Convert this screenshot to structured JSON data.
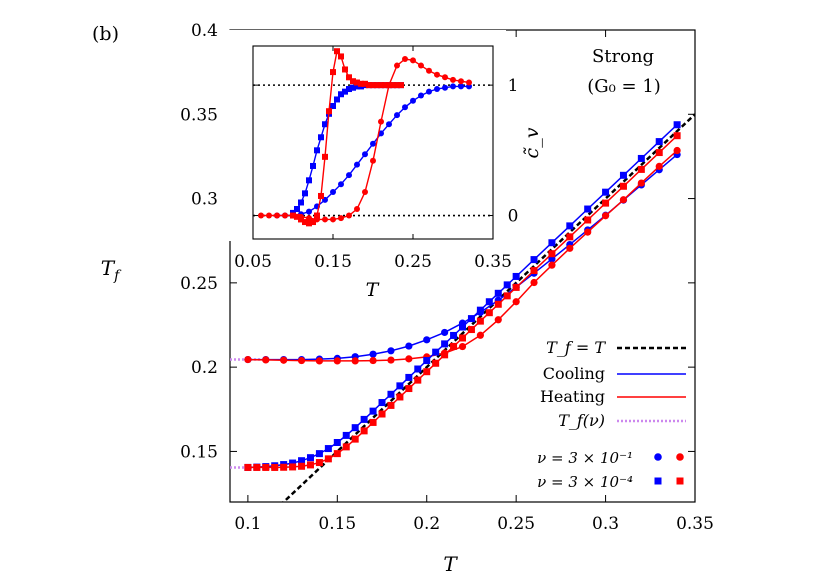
{
  "chart_data": [
    {
      "type": "line",
      "panel_label": "(b)",
      "xlabel": "T",
      "ylabel": "T_f",
      "xlim": [
        0.09,
        0.35
      ],
      "ylim": [
        0.12,
        0.4
      ],
      "xticks": [
        "0.1",
        "0.15",
        "0.2",
        "0.25",
        "0.3",
        "0.35"
      ],
      "yticks": [
        "0.15",
        "0.2",
        "0.25",
        "0.3",
        "0.35",
        "0.4"
      ],
      "annotation": {
        "line1": "Strong",
        "line2": "(G₀ = 1)"
      },
      "legend": {
        "position": "bottom-right",
        "items": [
          {
            "label": "T_f = T",
            "color": "#000000",
            "style": "dashed"
          },
          {
            "label": "Cooling",
            "color": "#0000ff",
            "style": "solid"
          },
          {
            "label": "Heating",
            "color": "#ff0000",
            "style": "solid"
          },
          {
            "label": "T_f(ν)",
            "color": "#cc88ee",
            "style": "dotted"
          }
        ],
        "markers": [
          {
            "label": "ν = 3 × 10⁻¹",
            "marker": "circle"
          },
          {
            "label": "ν = 3 × 10⁻⁴",
            "marker": "square"
          }
        ]
      },
      "series": [
        {
          "name": "Cooling, ν = 3 × 10⁻¹",
          "color": "#0000ff",
          "marker": "circle",
          "x": [
            0.1,
            0.11,
            0.12,
            0.13,
            0.14,
            0.15,
            0.16,
            0.17,
            0.18,
            0.19,
            0.2,
            0.21,
            0.22,
            0.23,
            0.24,
            0.25,
            0.26,
            0.27,
            0.28,
            0.29,
            0.3,
            0.31,
            0.32,
            0.33,
            0.34
          ],
          "y": [
            0.2045,
            0.2045,
            0.2045,
            0.2045,
            0.2048,
            0.2052,
            0.2062,
            0.2077,
            0.2097,
            0.2125,
            0.2162,
            0.2206,
            0.2261,
            0.2325,
            0.2397,
            0.2475,
            0.2557,
            0.2642,
            0.2727,
            0.2814,
            0.2901,
            0.2991,
            0.3081,
            0.3171,
            0.3261
          ]
        },
        {
          "name": "Heating, ν = 3 × 10⁻¹",
          "color": "#ff0000",
          "marker": "circle",
          "x": [
            0.1,
            0.11,
            0.12,
            0.13,
            0.14,
            0.15,
            0.16,
            0.17,
            0.18,
            0.19,
            0.2,
            0.21,
            0.22,
            0.23,
            0.24,
            0.25,
            0.26,
            0.27,
            0.28,
            0.29,
            0.3,
            0.31,
            0.32,
            0.33,
            0.34
          ],
          "y": [
            0.2045,
            0.2043,
            0.2041,
            0.2039,
            0.2037,
            0.2037,
            0.2037,
            0.2039,
            0.2042,
            0.2049,
            0.2061,
            0.2083,
            0.2122,
            0.2189,
            0.2281,
            0.2388,
            0.2502,
            0.2605,
            0.2705,
            0.2801,
            0.2898,
            0.2993,
            0.3092,
            0.3191,
            0.3285
          ]
        },
        {
          "name": "Cooling, ν = 3 × 10⁻⁴",
          "color": "#0000ff",
          "marker": "square",
          "x": [
            0.1,
            0.105,
            0.11,
            0.115,
            0.12,
            0.125,
            0.13,
            0.135,
            0.14,
            0.145,
            0.15,
            0.155,
            0.16,
            0.165,
            0.17,
            0.175,
            0.18,
            0.185,
            0.19,
            0.195,
            0.2,
            0.205,
            0.21,
            0.215,
            0.22,
            0.225,
            0.23,
            0.235,
            0.24,
            0.245,
            0.25,
            0.26,
            0.27,
            0.28,
            0.29,
            0.3,
            0.31,
            0.32,
            0.33,
            0.34
          ],
          "y": [
            0.1405,
            0.1407,
            0.141,
            0.1415,
            0.1422,
            0.1431,
            0.1445,
            0.1463,
            0.1487,
            0.1517,
            0.1553,
            0.1595,
            0.1641,
            0.169,
            0.1739,
            0.179,
            0.1839,
            0.1889,
            0.1939,
            0.1989,
            0.2039,
            0.2089,
            0.2138,
            0.2188,
            0.2238,
            0.2288,
            0.2338,
            0.2388,
            0.2438,
            0.2488,
            0.2538,
            0.2638,
            0.2738,
            0.2838,
            0.2938,
            0.3038,
            0.3138,
            0.3238,
            0.3338,
            0.3438
          ]
        },
        {
          "name": "Heating, ν = 3 × 10⁻⁴",
          "color": "#ff0000",
          "marker": "square",
          "x": [
            0.1,
            0.105,
            0.11,
            0.115,
            0.12,
            0.125,
            0.13,
            0.135,
            0.14,
            0.145,
            0.15,
            0.155,
            0.16,
            0.165,
            0.17,
            0.175,
            0.18,
            0.185,
            0.19,
            0.195,
            0.2,
            0.205,
            0.21,
            0.215,
            0.22,
            0.225,
            0.23,
            0.235,
            0.24,
            0.245,
            0.25,
            0.26,
            0.27,
            0.28,
            0.29,
            0.3,
            0.31,
            0.32,
            0.33,
            0.34
          ],
          "y": [
            0.1405,
            0.1405,
            0.1405,
            0.1405,
            0.1406,
            0.1408,
            0.1412,
            0.142,
            0.1434,
            0.1456,
            0.1487,
            0.1527,
            0.1573,
            0.1622,
            0.1672,
            0.1722,
            0.1773,
            0.1823,
            0.1873,
            0.1923,
            0.1973,
            0.2023,
            0.2073,
            0.2123,
            0.2173,
            0.2223,
            0.2273,
            0.2323,
            0.2373,
            0.2423,
            0.2473,
            0.2573,
            0.2673,
            0.2773,
            0.2873,
            0.2973,
            0.3073,
            0.3173,
            0.3273,
            0.3373
          ]
        }
      ],
      "reference_lines": [
        {
          "name": "T_f = T",
          "color": "#000000",
          "style": "dashed",
          "x": [
            0.118,
            0.35
          ],
          "y": [
            0.118,
            0.35
          ]
        },
        {
          "name": "T_f(ν) slow",
          "color": "#cc88ee",
          "style": "dotted",
          "x": [
            0.09,
            0.108
          ],
          "y": [
            0.1405,
            0.1405
          ]
        },
        {
          "name": "T_f(ν) fast",
          "color": "#cc88ee",
          "style": "dotted",
          "x": [
            0.09,
            0.108
          ],
          "y": [
            0.2045,
            0.2045
          ]
        }
      ]
    },
    {
      "type": "line",
      "role": "inset",
      "xlabel": "T",
      "ylabel": "c̃_v",
      "xlim": [
        0.05,
        0.35
      ],
      "ylim": [
        -0.18,
        1.3
      ],
      "xticks": [
        "0.05",
        "0.15",
        "0.25",
        "0.35"
      ],
      "yticks": [
        "0",
        "1"
      ],
      "reference_lines": [
        {
          "y": 0,
          "style": "dotted",
          "color": "#000000"
        },
        {
          "y": 1,
          "style": "dotted",
          "color": "#000000"
        }
      ],
      "series": [
        {
          "name": "Cooling, ν = 3 × 10⁻¹",
          "color": "#0000ff",
          "marker": "circle",
          "x": [
            0.08,
            0.09,
            0.1,
            0.11,
            0.12,
            0.13,
            0.14,
            0.15,
            0.16,
            0.17,
            0.18,
            0.19,
            0.2,
            0.21,
            0.22,
            0.23,
            0.24,
            0.25,
            0.26,
            0.27,
            0.28,
            0.29,
            0.3,
            0.31,
            0.32
          ],
          "y": [
            0.0,
            0.0,
            0.0,
            0.01,
            0.03,
            0.07,
            0.12,
            0.18,
            0.24,
            0.31,
            0.39,
            0.47,
            0.55,
            0.63,
            0.7,
            0.77,
            0.83,
            0.88,
            0.92,
            0.95,
            0.97,
            0.98,
            0.99,
            0.99,
            0.99
          ]
        },
        {
          "name": "Heating, ν = 3 × 10⁻¹",
          "color": "#ff0000",
          "marker": "circle",
          "x": [
            0.06,
            0.07,
            0.08,
            0.09,
            0.1,
            0.11,
            0.12,
            0.13,
            0.14,
            0.15,
            0.16,
            0.17,
            0.18,
            0.19,
            0.2,
            0.21,
            0.22,
            0.23,
            0.24,
            0.25,
            0.26,
            0.27,
            0.28,
            0.29,
            0.3,
            0.31,
            0.32
          ],
          "y": [
            0.0,
            0.0,
            0.0,
            0.0,
            0.0,
            -0.01,
            -0.02,
            -0.03,
            -0.03,
            -0.03,
            -0.02,
            0.0,
            0.05,
            0.18,
            0.42,
            0.72,
            1.0,
            1.15,
            1.2,
            1.19,
            1.15,
            1.11,
            1.08,
            1.06,
            1.04,
            1.03,
            1.02
          ]
        },
        {
          "name": "Cooling, ν = 3 × 10⁻⁴",
          "color": "#0000ff",
          "marker": "square",
          "x": [
            0.1,
            0.105,
            0.11,
            0.115,
            0.12,
            0.125,
            0.13,
            0.135,
            0.14,
            0.145,
            0.15,
            0.155,
            0.16,
            0.165,
            0.17,
            0.175,
            0.18,
            0.185,
            0.19,
            0.195,
            0.2,
            0.205,
            0.21,
            0.215,
            0.22,
            0.225,
            0.23,
            0.235
          ],
          "y": [
            0.02,
            0.05,
            0.1,
            0.17,
            0.27,
            0.38,
            0.5,
            0.6,
            0.7,
            0.78,
            0.84,
            0.89,
            0.93,
            0.95,
            0.97,
            0.98,
            0.99,
            0.99,
            1.0,
            1.0,
            1.0,
            1.0,
            1.0,
            1.0,
            1.0,
            1.0,
            1.0,
            1.0
          ]
        },
        {
          "name": "Heating, ν = 3 × 10⁻⁴",
          "color": "#ff0000",
          "marker": "square",
          "x": [
            0.1,
            0.105,
            0.11,
            0.115,
            0.12,
            0.125,
            0.13,
            0.135,
            0.14,
            0.145,
            0.15,
            0.155,
            0.16,
            0.165,
            0.17,
            0.175,
            0.18,
            0.185,
            0.19,
            0.195,
            0.2,
            0.205,
            0.21,
            0.215,
            0.22,
            0.225,
            0.23,
            0.235
          ],
          "y": [
            0.0,
            -0.01,
            -0.03,
            -0.05,
            -0.06,
            -0.05,
            0.0,
            0.15,
            0.45,
            0.8,
            1.1,
            1.26,
            1.22,
            1.12,
            1.06,
            1.03,
            1.02,
            1.01,
            1.01,
            1.0,
            1.0,
            1.0,
            1.0,
            1.0,
            1.0,
            1.0,
            1.0,
            1.0
          ]
        }
      ]
    }
  ]
}
